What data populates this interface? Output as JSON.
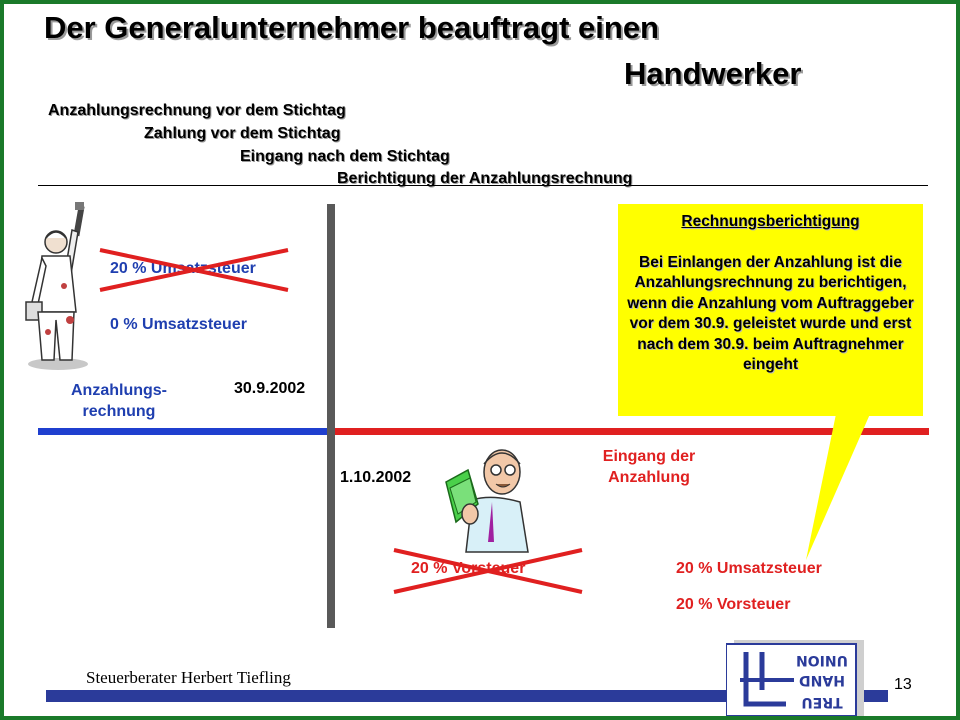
{
  "title": {
    "line1": "Der Generalunternehmer beauftragt einen",
    "line2": "Handwerker"
  },
  "subtitles": [
    "Anzahlungsrechnung vor dem Stichtag",
    "Zahlung vor dem Stichtag",
    "Eingang nach dem Stichtag",
    "Berichtigung der Anzahlungsrechnung"
  ],
  "left": {
    "tax_crossed": "20 % Umsatzsteuer",
    "tax_new": "0 % Umsatzsteuer",
    "invoice_label_line1": "Anzahlungs-",
    "invoice_label_line2": "rechnung",
    "date_before": "30.9.2002"
  },
  "right": {
    "date_after": "1.10.2002",
    "receipt_line1": "Eingang der",
    "receipt_line2": "Anzahlung",
    "input_tax_crossed": "20 % Vorsteuer",
    "result_sales_tax": "20 % Umsatzsteuer",
    "result_input_tax": "20 % Vorsteuer"
  },
  "callout": {
    "heading": "Rechnungsberichtigung",
    "text": "Bei Einlangen der Anzahlung ist die Anzahlungsrechnung zu berichtigen, wenn die Anzahlung vom Auftraggeber vor dem 30.9. geleistet wurde und erst nach dem 30.9. beim Auftragnehmer eingeht"
  },
  "footer": {
    "author": "Steuerberater Herbert Tiefling",
    "page": "13"
  },
  "logo": {
    "line1": "UNION",
    "line2": "HAND",
    "line3": "TREU"
  },
  "colors": {
    "frame": "#1a7a2a",
    "timeline_before": "#1f3fcf",
    "timeline_after": "#e02020",
    "callout": "#ffff00",
    "cross": "#e02020",
    "divider": "#595959"
  }
}
